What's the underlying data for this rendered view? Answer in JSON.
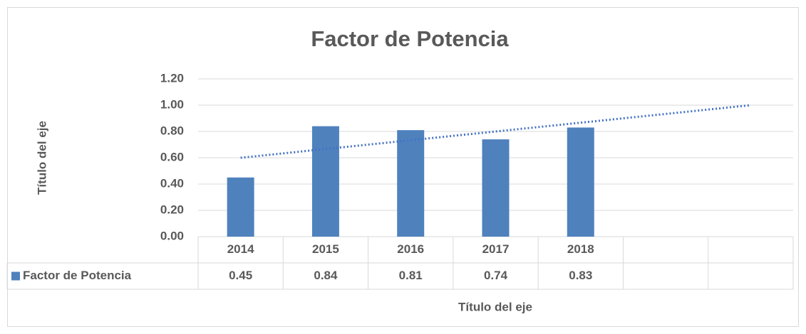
{
  "chart_data": {
    "type": "bar",
    "title": "Factor de Potencia",
    "x_label": "Título del eje",
    "y_label": "Título del eje",
    "categories": [
      "2014",
      "2015",
      "2016",
      "2017",
      "2018",
      null,
      null
    ],
    "series": [
      {
        "name": "Factor de Potencia",
        "color": "#4f81bd",
        "values": [
          0.45,
          0.84,
          0.81,
          0.74,
          0.83,
          null,
          null
        ]
      }
    ],
    "trendline": {
      "color": "#4472c4",
      "start": 0.6,
      "end": 1.0
    },
    "ylim": [
      0,
      1.2
    ],
    "yticks": [
      {
        "value": 0,
        "label": "0.00"
      },
      {
        "value": 0.2,
        "label": "0.20"
      },
      {
        "value": 0.4,
        "label": "0.40"
      },
      {
        "value": 0.6,
        "label": "0.60"
      },
      {
        "value": 0.8,
        "label": "0.80"
      },
      {
        "value": 1.0,
        "label": "1.00"
      },
      {
        "value": 1.2,
        "label": "1.20"
      }
    ],
    "grid": true,
    "data_table": true
  }
}
